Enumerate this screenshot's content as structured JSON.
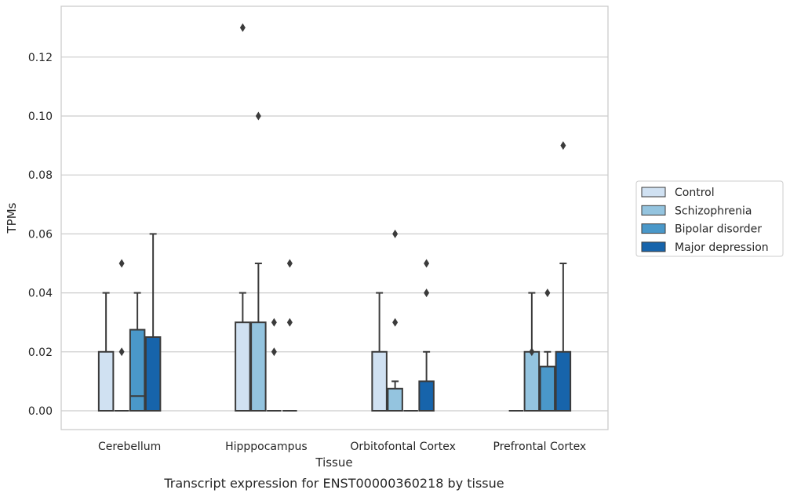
{
  "chart_data": {
    "type": "box",
    "title": "",
    "caption": "Transcript expression for ENST00000360218 by tissue",
    "xlabel": "Tissue",
    "ylabel": "TPMs",
    "ylim": [
      -0.0064,
      0.1364
    ],
    "yticks": [
      0.0,
      0.02,
      0.04,
      0.06,
      0.08,
      0.1,
      0.12
    ],
    "ytick_labels": [
      "0.00",
      "0.02",
      "0.04",
      "0.06",
      "0.08",
      "0.10",
      "0.12"
    ],
    "grid": "horizontal",
    "legend_position": "right",
    "categories": [
      "Cerebellum",
      "Hipppocampus",
      "Orbitofontal Cortex",
      "Prefrontal Cortex"
    ],
    "series": [
      {
        "name": "Control",
        "color": "#d0e1f2",
        "boxes": [
          {
            "q1": 0.0,
            "median": 0.0,
            "q3": 0.02,
            "whisker_low": 0.0,
            "whisker_high": 0.04,
            "outliers": []
          },
          {
            "q1": 0.0,
            "median": 0.0,
            "q3": 0.03,
            "whisker_low": 0.0,
            "whisker_high": 0.04,
            "outliers": [
              0.13
            ]
          },
          {
            "q1": 0.0,
            "median": 0.0,
            "q3": 0.02,
            "whisker_low": 0.0,
            "whisker_high": 0.04,
            "outliers": []
          },
          {
            "q1": 0.0,
            "median": 0.0,
            "q3": 0.0,
            "whisker_low": 0.0,
            "whisker_high": 0.0,
            "outliers": []
          }
        ]
      },
      {
        "name": "Schizophrenia",
        "color": "#94c4df",
        "boxes": [
          {
            "q1": 0.0,
            "median": 0.0,
            "q3": 0.0,
            "whisker_low": 0.0,
            "whisker_high": 0.0,
            "outliers": [
              0.02,
              0.05
            ]
          },
          {
            "q1": 0.0,
            "median": 0.0,
            "q3": 0.03,
            "whisker_low": 0.0,
            "whisker_high": 0.05,
            "outliers": [
              0.1
            ]
          },
          {
            "q1": 0.0,
            "median": 0.0,
            "q3": 0.0075,
            "whisker_low": 0.0,
            "whisker_high": 0.01,
            "outliers": [
              0.03,
              0.06
            ]
          },
          {
            "q1": 0.0,
            "median": 0.0,
            "q3": 0.02,
            "whisker_low": 0.0,
            "whisker_high": 0.04,
            "outliers": [
              0.02
            ]
          }
        ]
      },
      {
        "name": "Bipolar disorder",
        "color": "#4a98c9",
        "boxes": [
          {
            "q1": 0.0,
            "median": 0.005,
            "q3": 0.0275,
            "whisker_low": 0.0,
            "whisker_high": 0.04,
            "outliers": []
          },
          {
            "q1": 0.0,
            "median": 0.0,
            "q3": 0.0,
            "whisker_low": 0.0,
            "whisker_high": 0.0,
            "outliers": [
              0.02,
              0.03
            ]
          },
          {
            "q1": 0.0,
            "median": 0.0,
            "q3": 0.0,
            "whisker_low": 0.0,
            "whisker_high": 0.0,
            "outliers": []
          },
          {
            "q1": 0.0,
            "median": 0.0,
            "q3": 0.015,
            "whisker_low": 0.0,
            "whisker_high": 0.02,
            "outliers": [
              0.04
            ]
          }
        ]
      },
      {
        "name": "Major depression",
        "color": "#1764ab",
        "boxes": [
          {
            "q1": 0.0,
            "median": 0.0,
            "q3": 0.025,
            "whisker_low": 0.0,
            "whisker_high": 0.06,
            "outliers": []
          },
          {
            "q1": 0.0,
            "median": 0.0,
            "q3": 0.0,
            "whisker_low": 0.0,
            "whisker_high": 0.0,
            "outliers": [
              0.03,
              0.05
            ]
          },
          {
            "q1": 0.0,
            "median": 0.0,
            "q3": 0.01,
            "whisker_low": 0.0,
            "whisker_high": 0.02,
            "outliers": [
              0.04,
              0.05
            ]
          },
          {
            "q1": 0.0,
            "median": 0.0,
            "q3": 0.02,
            "whisker_low": 0.0,
            "whisker_high": 0.05,
            "outliers": [
              0.09
            ]
          }
        ]
      }
    ]
  }
}
